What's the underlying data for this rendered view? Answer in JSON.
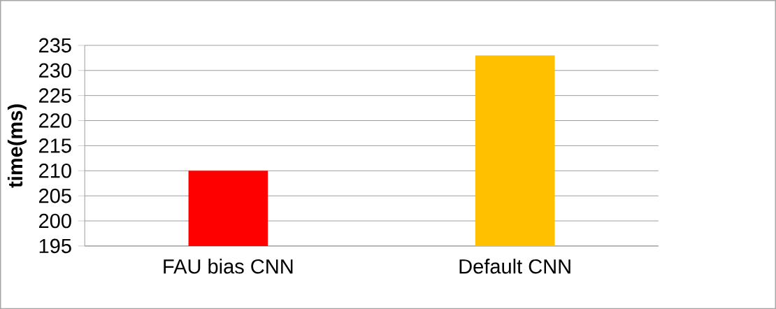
{
  "chart_data": {
    "type": "bar",
    "ylabel": "time(ms)",
    "categories": [
      "FAU bias CNN",
      "Default CNN"
    ],
    "values": [
      210,
      233
    ],
    "colors": [
      "#ff0000",
      "#ffc000"
    ],
    "ylim": [
      195,
      235
    ],
    "yticks": [
      195,
      200,
      205,
      210,
      215,
      220,
      225,
      230,
      235
    ],
    "grid": "y"
  }
}
